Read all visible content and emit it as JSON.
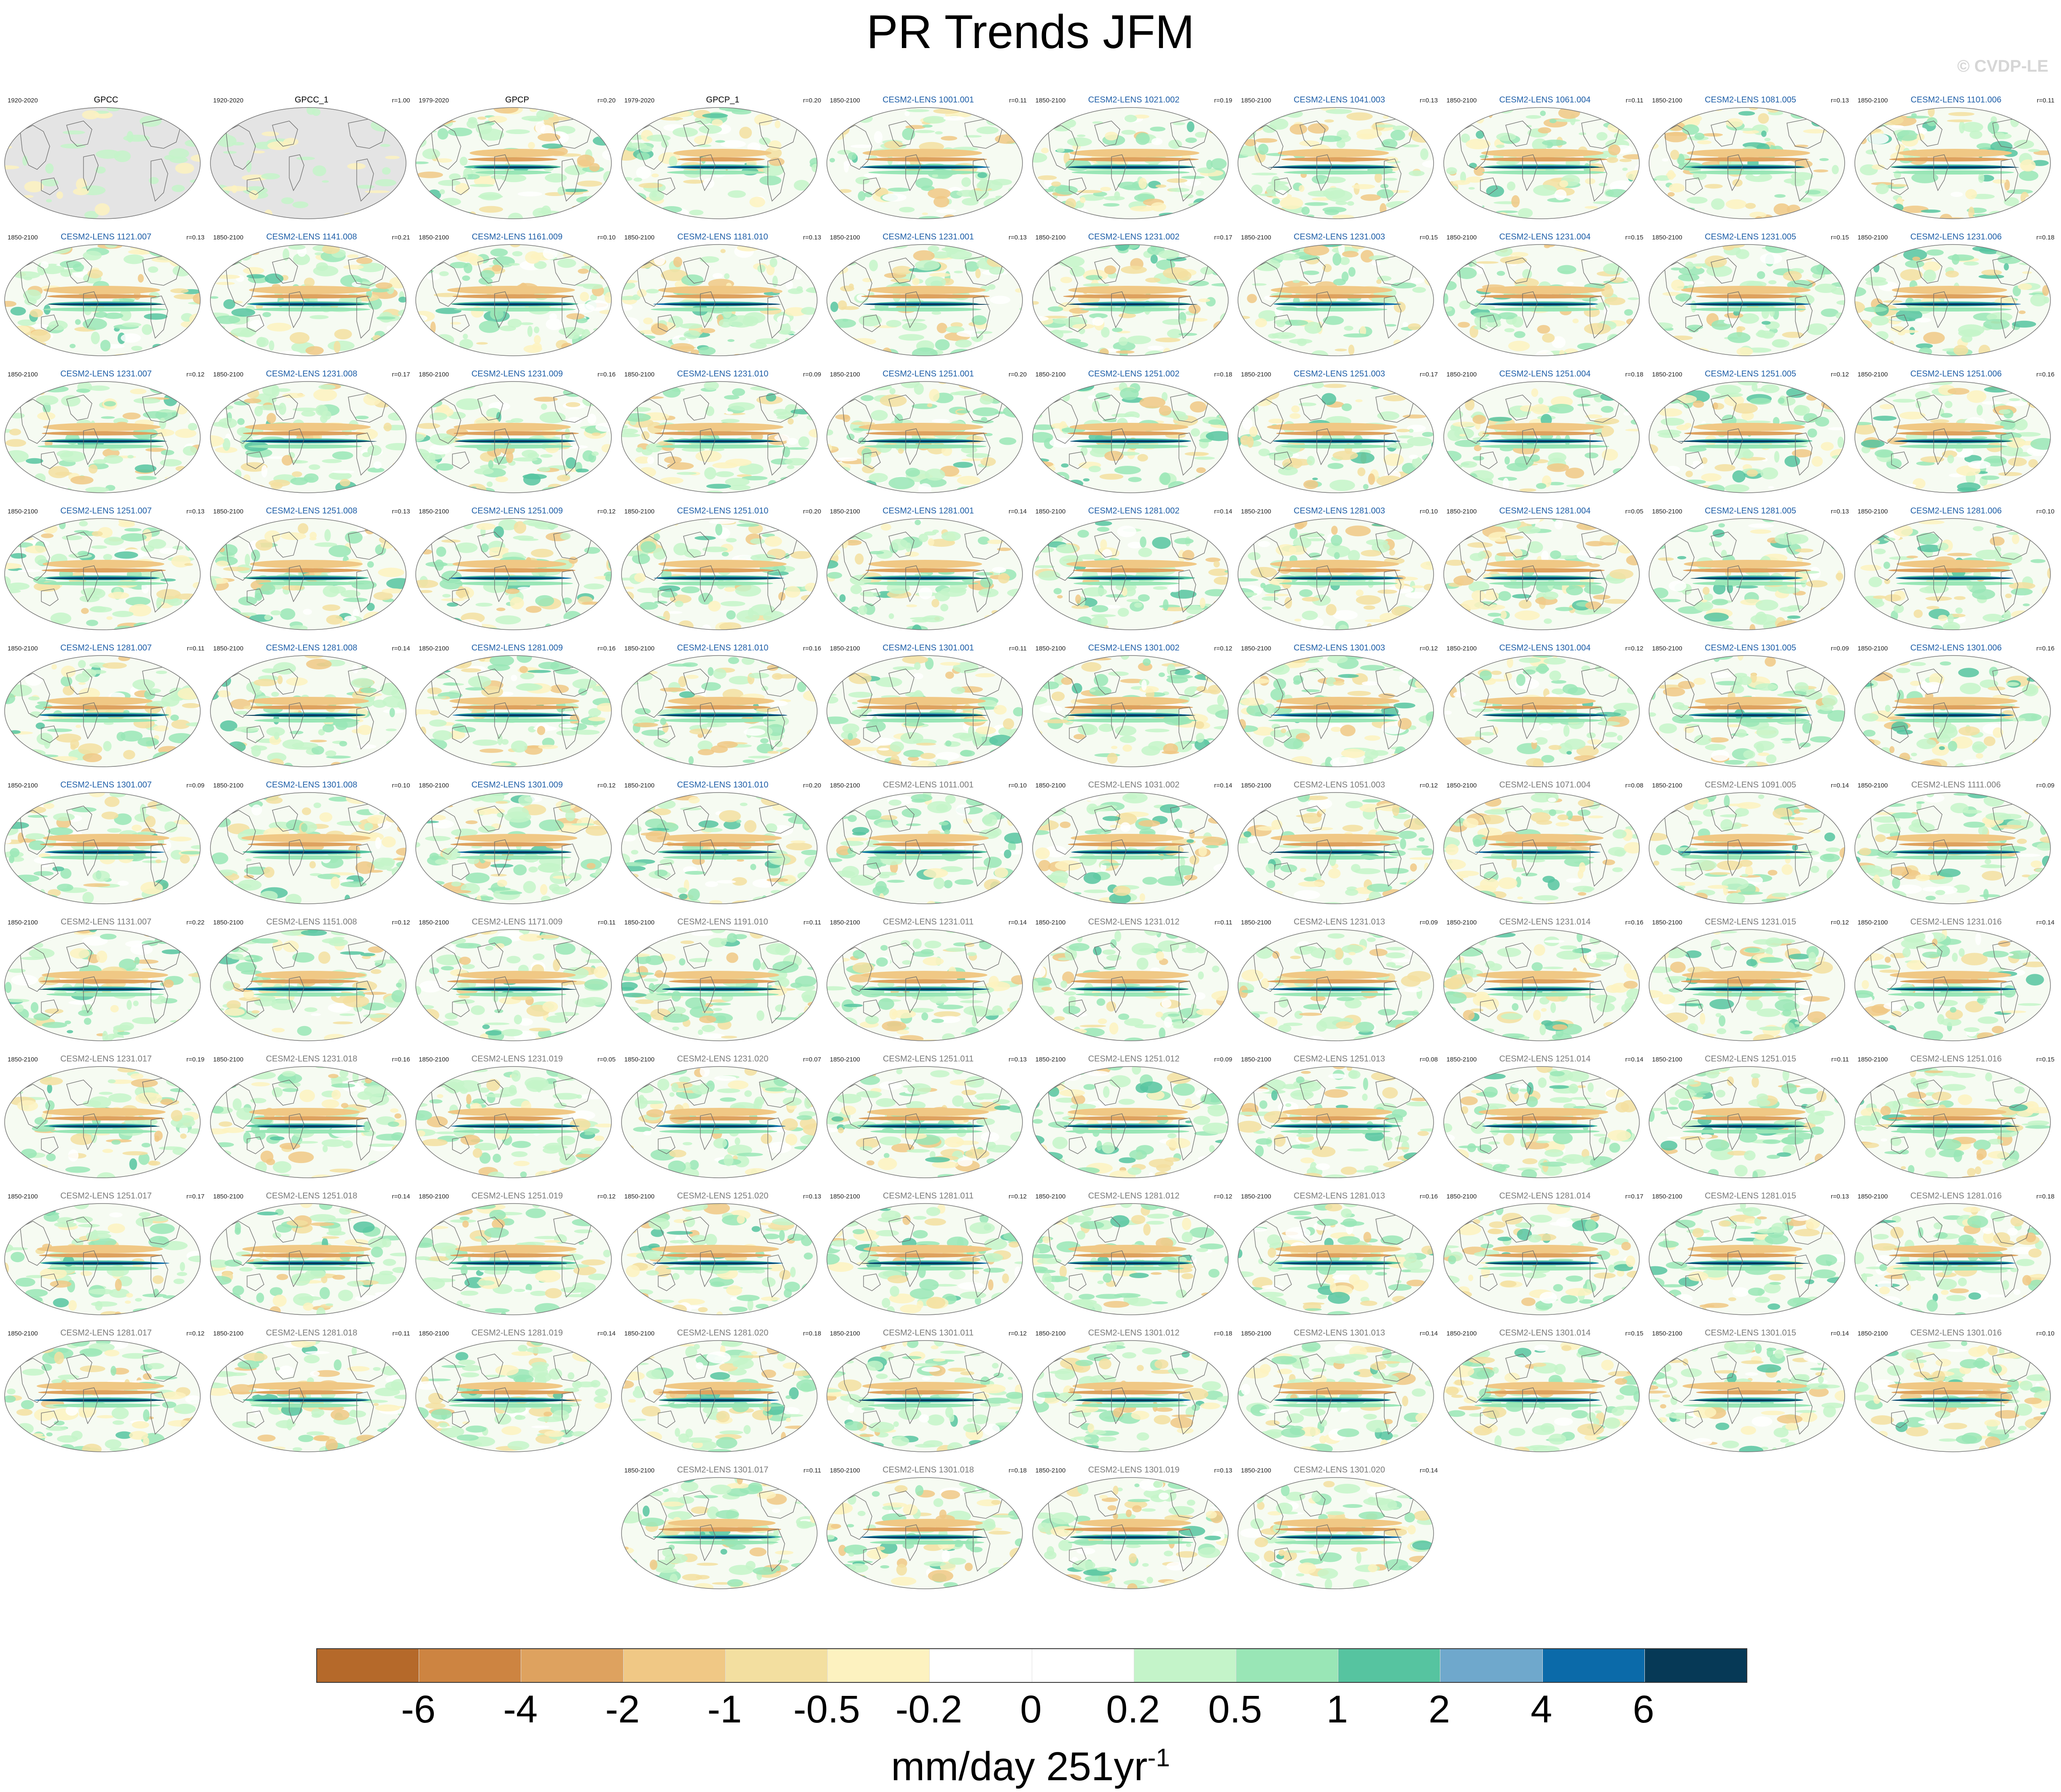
{
  "title": "PR Trends JFM",
  "watermark": "© CVDP-LE",
  "colors": {
    "ocean_land_gray": "#e4e4e4",
    "label_obs": "#000000",
    "label_model_blue": "#1f5fa8",
    "label_model_gray": "#7a7a7a",
    "coast": "#6b6b6b"
  },
  "panels": [
    {
      "label": "GPCC",
      "years": "1920-2020",
      "r": "",
      "kind": "obs"
    },
    {
      "label": "GPCC_1",
      "years": "1920-2020",
      "r": "r=1.00",
      "kind": "obs"
    },
    {
      "label": "GPCP",
      "years": "1979-2020",
      "r": "r=0.20",
      "kind": "obs"
    },
    {
      "label": "GPCP_1",
      "years": "1979-2020",
      "r": "r=0.20",
      "kind": "obs"
    },
    {
      "label": "CESM2-LENS 1001.001",
      "years": "1850-2100",
      "r": "r=0.11",
      "kind": "blue"
    },
    {
      "label": "CESM2-LENS 1021.002",
      "years": "1850-2100",
      "r": "r=0.19",
      "kind": "blue"
    },
    {
      "label": "CESM2-LENS 1041.003",
      "years": "1850-2100",
      "r": "r=0.13",
      "kind": "blue"
    },
    {
      "label": "CESM2-LENS 1061.004",
      "years": "1850-2100",
      "r": "r=0.11",
      "kind": "blue"
    },
    {
      "label": "CESM2-LENS 1081.005",
      "years": "1850-2100",
      "r": "r=0.13",
      "kind": "blue"
    },
    {
      "label": "CESM2-LENS 1101.006",
      "years": "1850-2100",
      "r": "r=0.11",
      "kind": "blue"
    },
    {
      "label": "CESM2-LENS 1121.007",
      "years": "1850-2100",
      "r": "r=0.13",
      "kind": "blue"
    },
    {
      "label": "CESM2-LENS 1141.008",
      "years": "1850-2100",
      "r": "r=0.21",
      "kind": "blue"
    },
    {
      "label": "CESM2-LENS 1161.009",
      "years": "1850-2100",
      "r": "r=0.10",
      "kind": "blue"
    },
    {
      "label": "CESM2-LENS 1181.010",
      "years": "1850-2100",
      "r": "r=0.13",
      "kind": "blue"
    },
    {
      "label": "CESM2-LENS 1231.001",
      "years": "1850-2100",
      "r": "r=0.13",
      "kind": "blue"
    },
    {
      "label": "CESM2-LENS 1231.002",
      "years": "1850-2100",
      "r": "r=0.17",
      "kind": "blue"
    },
    {
      "label": "CESM2-LENS 1231.003",
      "years": "1850-2100",
      "r": "r=0.15",
      "kind": "blue"
    },
    {
      "label": "CESM2-LENS 1231.004",
      "years": "1850-2100",
      "r": "r=0.15",
      "kind": "blue"
    },
    {
      "label": "CESM2-LENS 1231.005",
      "years": "1850-2100",
      "r": "r=0.15",
      "kind": "blue"
    },
    {
      "label": "CESM2-LENS 1231.006",
      "years": "1850-2100",
      "r": "r=0.18",
      "kind": "blue"
    },
    {
      "label": "CESM2-LENS 1231.007",
      "years": "1850-2100",
      "r": "r=0.12",
      "kind": "blue"
    },
    {
      "label": "CESM2-LENS 1231.008",
      "years": "1850-2100",
      "r": "r=0.17",
      "kind": "blue"
    },
    {
      "label": "CESM2-LENS 1231.009",
      "years": "1850-2100",
      "r": "r=0.16",
      "kind": "blue"
    },
    {
      "label": "CESM2-LENS 1231.010",
      "years": "1850-2100",
      "r": "r=0.09",
      "kind": "blue"
    },
    {
      "label": "CESM2-LENS 1251.001",
      "years": "1850-2100",
      "r": "r=0.20",
      "kind": "blue"
    },
    {
      "label": "CESM2-LENS 1251.002",
      "years": "1850-2100",
      "r": "r=0.18",
      "kind": "blue"
    },
    {
      "label": "CESM2-LENS 1251.003",
      "years": "1850-2100",
      "r": "r=0.17",
      "kind": "blue"
    },
    {
      "label": "CESM2-LENS 1251.004",
      "years": "1850-2100",
      "r": "r=0.18",
      "kind": "blue"
    },
    {
      "label": "CESM2-LENS 1251.005",
      "years": "1850-2100",
      "r": "r=0.12",
      "kind": "blue"
    },
    {
      "label": "CESM2-LENS 1251.006",
      "years": "1850-2100",
      "r": "r=0.16",
      "kind": "blue"
    },
    {
      "label": "CESM2-LENS 1251.007",
      "years": "1850-2100",
      "r": "r=0.13",
      "kind": "blue"
    },
    {
      "label": "CESM2-LENS 1251.008",
      "years": "1850-2100",
      "r": "r=0.13",
      "kind": "blue"
    },
    {
      "label": "CESM2-LENS 1251.009",
      "years": "1850-2100",
      "r": "r=0.12",
      "kind": "blue"
    },
    {
      "label": "CESM2-LENS 1251.010",
      "years": "1850-2100",
      "r": "r=0.20",
      "kind": "blue"
    },
    {
      "label": "CESM2-LENS 1281.001",
      "years": "1850-2100",
      "r": "r=0.14",
      "kind": "blue"
    },
    {
      "label": "CESM2-LENS 1281.002",
      "years": "1850-2100",
      "r": "r=0.14",
      "kind": "blue"
    },
    {
      "label": "CESM2-LENS 1281.003",
      "years": "1850-2100",
      "r": "r=0.10",
      "kind": "blue"
    },
    {
      "label": "CESM2-LENS 1281.004",
      "years": "1850-2100",
      "r": "r=0.05",
      "kind": "blue"
    },
    {
      "label": "CESM2-LENS 1281.005",
      "years": "1850-2100",
      "r": "r=0.13",
      "kind": "blue"
    },
    {
      "label": "CESM2-LENS 1281.006",
      "years": "1850-2100",
      "r": "r=0.10",
      "kind": "blue"
    },
    {
      "label": "CESM2-LENS 1281.007",
      "years": "1850-2100",
      "r": "r=0.11",
      "kind": "blue"
    },
    {
      "label": "CESM2-LENS 1281.008",
      "years": "1850-2100",
      "r": "r=0.14",
      "kind": "blue"
    },
    {
      "label": "CESM2-LENS 1281.009",
      "years": "1850-2100",
      "r": "r=0.16",
      "kind": "blue"
    },
    {
      "label": "CESM2-LENS 1281.010",
      "years": "1850-2100",
      "r": "r=0.16",
      "kind": "blue"
    },
    {
      "label": "CESM2-LENS 1301.001",
      "years": "1850-2100",
      "r": "r=0.11",
      "kind": "blue"
    },
    {
      "label": "CESM2-LENS 1301.002",
      "years": "1850-2100",
      "r": "r=0.12",
      "kind": "blue"
    },
    {
      "label": "CESM2-LENS 1301.003",
      "years": "1850-2100",
      "r": "r=0.12",
      "kind": "blue"
    },
    {
      "label": "CESM2-LENS 1301.004",
      "years": "1850-2100",
      "r": "r=0.12",
      "kind": "blue"
    },
    {
      "label": "CESM2-LENS 1301.005",
      "years": "1850-2100",
      "r": "r=0.09",
      "kind": "blue"
    },
    {
      "label": "CESM2-LENS 1301.006",
      "years": "1850-2100",
      "r": "r=0.16",
      "kind": "blue"
    },
    {
      "label": "CESM2-LENS 1301.007",
      "years": "1850-2100",
      "r": "r=0.09",
      "kind": "blue"
    },
    {
      "label": "CESM2-LENS 1301.008",
      "years": "1850-2100",
      "r": "r=0.10",
      "kind": "blue"
    },
    {
      "label": "CESM2-LENS 1301.009",
      "years": "1850-2100",
      "r": "r=0.12",
      "kind": "blue"
    },
    {
      "label": "CESM2-LENS 1301.010",
      "years": "1850-2100",
      "r": "r=0.20",
      "kind": "blue"
    },
    {
      "label": "CESM2-LENS 1011.001",
      "years": "1850-2100",
      "r": "r=0.10",
      "kind": "gray"
    },
    {
      "label": "CESM2-LENS 1031.002",
      "years": "1850-2100",
      "r": "r=0.14",
      "kind": "gray"
    },
    {
      "label": "CESM2-LENS 1051.003",
      "years": "1850-2100",
      "r": "r=0.12",
      "kind": "gray"
    },
    {
      "label": "CESM2-LENS 1071.004",
      "years": "1850-2100",
      "r": "r=0.08",
      "kind": "gray"
    },
    {
      "label": "CESM2-LENS 1091.005",
      "years": "1850-2100",
      "r": "r=0.14",
      "kind": "gray"
    },
    {
      "label": "CESM2-LENS 1111.006",
      "years": "1850-2100",
      "r": "r=0.09",
      "kind": "gray"
    },
    {
      "label": "CESM2-LENS 1131.007",
      "years": "1850-2100",
      "r": "r=0.22",
      "kind": "gray"
    },
    {
      "label": "CESM2-LENS 1151.008",
      "years": "1850-2100",
      "r": "r=0.12",
      "kind": "gray"
    },
    {
      "label": "CESM2-LENS 1171.009",
      "years": "1850-2100",
      "r": "r=0.11",
      "kind": "gray"
    },
    {
      "label": "CESM2-LENS 1191.010",
      "years": "1850-2100",
      "r": "r=0.11",
      "kind": "gray"
    },
    {
      "label": "CESM2-LENS 1231.011",
      "years": "1850-2100",
      "r": "r=0.14",
      "kind": "gray"
    },
    {
      "label": "CESM2-LENS 1231.012",
      "years": "1850-2100",
      "r": "r=0.11",
      "kind": "gray"
    },
    {
      "label": "CESM2-LENS 1231.013",
      "years": "1850-2100",
      "r": "r=0.09",
      "kind": "gray"
    },
    {
      "label": "CESM2-LENS 1231.014",
      "years": "1850-2100",
      "r": "r=0.16",
      "kind": "gray"
    },
    {
      "label": "CESM2-LENS 1231.015",
      "years": "1850-2100",
      "r": "r=0.12",
      "kind": "gray"
    },
    {
      "label": "CESM2-LENS 1231.016",
      "years": "1850-2100",
      "r": "r=0.14",
      "kind": "gray"
    },
    {
      "label": "CESM2-LENS 1231.017",
      "years": "1850-2100",
      "r": "r=0.19",
      "kind": "gray"
    },
    {
      "label": "CESM2-LENS 1231.018",
      "years": "1850-2100",
      "r": "r=0.16",
      "kind": "gray"
    },
    {
      "label": "CESM2-LENS 1231.019",
      "years": "1850-2100",
      "r": "r=0.05",
      "kind": "gray"
    },
    {
      "label": "CESM2-LENS 1231.020",
      "years": "1850-2100",
      "r": "r=0.07",
      "kind": "gray"
    },
    {
      "label": "CESM2-LENS 1251.011",
      "years": "1850-2100",
      "r": "r=0.13",
      "kind": "gray"
    },
    {
      "label": "CESM2-LENS 1251.012",
      "years": "1850-2100",
      "r": "r=0.09",
      "kind": "gray"
    },
    {
      "label": "CESM2-LENS 1251.013",
      "years": "1850-2100",
      "r": "r=0.08",
      "kind": "gray"
    },
    {
      "label": "CESM2-LENS 1251.014",
      "years": "1850-2100",
      "r": "r=0.14",
      "kind": "gray"
    },
    {
      "label": "CESM2-LENS 1251.015",
      "years": "1850-2100",
      "r": "r=0.11",
      "kind": "gray"
    },
    {
      "label": "CESM2-LENS 1251.016",
      "years": "1850-2100",
      "r": "r=0.15",
      "kind": "gray"
    },
    {
      "label": "CESM2-LENS 1251.017",
      "years": "1850-2100",
      "r": "r=0.17",
      "kind": "gray"
    },
    {
      "label": "CESM2-LENS 1251.018",
      "years": "1850-2100",
      "r": "r=0.14",
      "kind": "gray"
    },
    {
      "label": "CESM2-LENS 1251.019",
      "years": "1850-2100",
      "r": "r=0.12",
      "kind": "gray"
    },
    {
      "label": "CESM2-LENS 1251.020",
      "years": "1850-2100",
      "r": "r=0.13",
      "kind": "gray"
    },
    {
      "label": "CESM2-LENS 1281.011",
      "years": "1850-2100",
      "r": "r=0.12",
      "kind": "gray"
    },
    {
      "label": "CESM2-LENS 1281.012",
      "years": "1850-2100",
      "r": "r=0.12",
      "kind": "gray"
    },
    {
      "label": "CESM2-LENS 1281.013",
      "years": "1850-2100",
      "r": "r=0.16",
      "kind": "gray"
    },
    {
      "label": "CESM2-LENS 1281.014",
      "years": "1850-2100",
      "r": "r=0.17",
      "kind": "gray"
    },
    {
      "label": "CESM2-LENS 1281.015",
      "years": "1850-2100",
      "r": "r=0.13",
      "kind": "gray"
    },
    {
      "label": "CESM2-LENS 1281.016",
      "years": "1850-2100",
      "r": "r=0.18",
      "kind": "gray"
    },
    {
      "label": "CESM2-LENS 1281.017",
      "years": "1850-2100",
      "r": "r=0.12",
      "kind": "gray"
    },
    {
      "label": "CESM2-LENS 1281.018",
      "years": "1850-2100",
      "r": "r=0.11",
      "kind": "gray"
    },
    {
      "label": "CESM2-LENS 1281.019",
      "years": "1850-2100",
      "r": "r=0.14",
      "kind": "gray"
    },
    {
      "label": "CESM2-LENS 1281.020",
      "years": "1850-2100",
      "r": "r=0.18",
      "kind": "gray"
    },
    {
      "label": "CESM2-LENS 1301.011",
      "years": "1850-2100",
      "r": "r=0.12",
      "kind": "gray"
    },
    {
      "label": "CESM2-LENS 1301.012",
      "years": "1850-2100",
      "r": "r=0.18",
      "kind": "gray"
    },
    {
      "label": "CESM2-LENS 1301.013",
      "years": "1850-2100",
      "r": "r=0.14",
      "kind": "gray"
    },
    {
      "label": "CESM2-LENS 1301.014",
      "years": "1850-2100",
      "r": "r=0.15",
      "kind": "gray"
    },
    {
      "label": "CESM2-LENS 1301.015",
      "years": "1850-2100",
      "r": "r=0.14",
      "kind": "gray"
    },
    {
      "label": "CESM2-LENS 1301.016",
      "years": "1850-2100",
      "r": "r=0.10",
      "kind": "gray"
    },
    {
      "label": "CESM2-LENS 1301.017",
      "years": "1850-2100",
      "r": "r=0.11",
      "kind": "gray"
    },
    {
      "label": "CESM2-LENS 1301.018",
      "years": "1850-2100",
      "r": "r=0.18",
      "kind": "gray"
    },
    {
      "label": "CESM2-LENS 1301.019",
      "years": "1850-2100",
      "r": "r=0.13",
      "kind": "gray"
    },
    {
      "label": "CESM2-LENS 1301.020",
      "years": "1850-2100",
      "r": "r=0.14",
      "kind": "gray"
    }
  ],
  "colorbar": {
    "colors": [
      "#b5692a",
      "#cd8441",
      "#dea25f",
      "#f0c885",
      "#f3dfa0",
      "#fdf2c0",
      "#ffffff",
      "#ffffff",
      "#c4f4c9",
      "#99e6b6",
      "#56c4a0",
      "#6fa8cc",
      "#0b6aa9",
      "#063956"
    ],
    "tick_labels": [
      "-6",
      "-4",
      "-2",
      "-1",
      "-0.5",
      "-0.2",
      "0",
      "0.2",
      "0.5",
      "1",
      "2",
      "4",
      "6"
    ],
    "units_main": "mm/day 251yr",
    "units_exp": "-1"
  },
  "chart_data": {
    "type": "heatmap",
    "title": "PR Trends JFM",
    "colorbar_levels": [
      -6,
      -4,
      -2,
      -1,
      -0.5,
      -0.2,
      0,
      0.2,
      0.5,
      1,
      2,
      4,
      6
    ],
    "colorbar_units": "mm/day 251yr-1",
    "panel_count": 104
  }
}
